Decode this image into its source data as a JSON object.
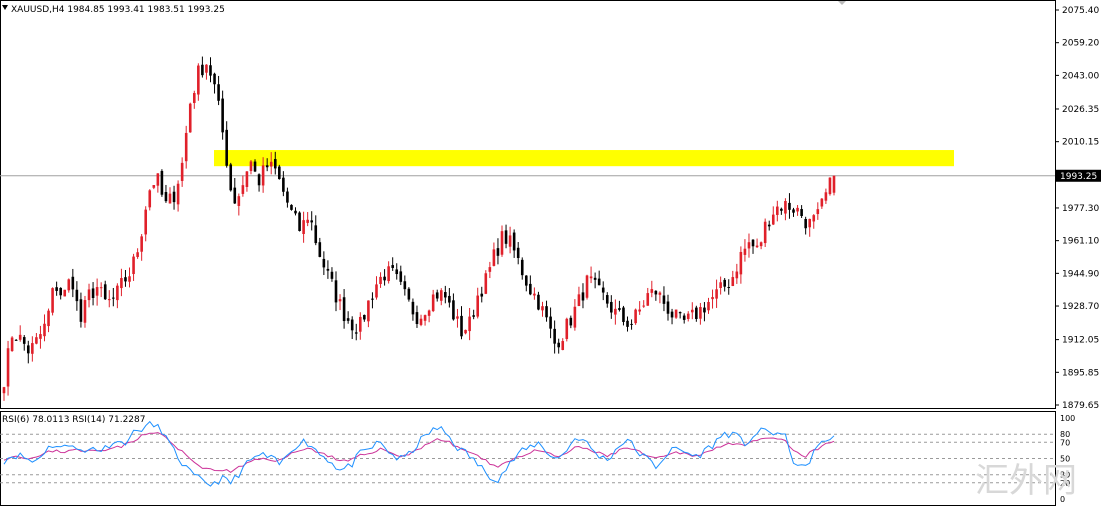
{
  "header": {
    "symbol_line": "XAUUSD,H4  1984.85 1993.41 1983.51 1993.25"
  },
  "price_axis": {
    "ticks": [
      "2075.40",
      "2059.20",
      "2043.00",
      "2026.35",
      "2010.15",
      "1993.25",
      "1977.30",
      "1961.10",
      "1944.90",
      "1928.70",
      "1912.05",
      "1895.85",
      "1879.65"
    ],
    "current_price_label": "1993.25"
  },
  "rsi_panel": {
    "header_text": "RSI(6) 78.0113  RSI(14) 71.2287",
    "ticks": [
      "100",
      "80",
      "70",
      "50",
      "30",
      "20",
      "0"
    ],
    "levels": [
      80,
      70,
      50,
      30,
      20
    ]
  },
  "watermark": "汇外网",
  "colors": {
    "bull_candle": "#e0202a",
    "bear_candle": "#000000",
    "zone": "#ffff00",
    "rsi6": "#1e90ff",
    "rsi14": "#cc3399",
    "grid_dash": "#9a9a9a",
    "price_line": "#a0a0a0"
  },
  "chart_data": [
    {
      "type": "candlestick",
      "title": "XAUUSD,H4",
      "ohlc_last": {
        "open": 1984.85,
        "high": 1993.41,
        "low": 1983.51,
        "close": 1993.25
      },
      "ylim": [
        1879.65,
        2075.4
      ],
      "resistance_zone": {
        "low": 1998,
        "high": 2006
      },
      "current_price": 1993.25,
      "path_closes": [
        1893,
        1916,
        1912,
        1906,
        1912,
        1920,
        1940,
        1933,
        1944,
        1920,
        1934,
        1938,
        1930,
        1932,
        1940,
        1946,
        1960,
        1985,
        1993,
        1978,
        1983,
        1998,
        2030,
        2045,
        2050,
        2035,
        2010,
        1980,
        1986,
        2002,
        1990,
        1998,
        1996,
        1985,
        1974,
        1966,
        1975,
        1958,
        1946,
        1936,
        1926,
        1920,
        1918,
        1930,
        1940,
        1945,
        1944,
        1936,
        1928,
        1923,
        1930,
        1935,
        1934,
        1925,
        1916,
        1920,
        1935,
        1942,
        1955,
        1964,
        1958,
        1948,
        1938,
        1932,
        1922,
        1910,
        1915,
        1923,
        1932,
        1942,
        1936,
        1932,
        1926,
        1922,
        1920,
        1926,
        1934,
        1936,
        1930,
        1924,
        1920,
        1922,
        1926,
        1930,
        1934,
        1938,
        1943,
        1954,
        1960,
        1956,
        1970,
        1977,
        1979,
        1978,
        1975,
        1969,
        1972,
        1983,
        1993
      ],
      "series_rsi": [
        {
          "name": "RSI(6)",
          "last": 78.0113,
          "values": [
            48,
            55,
            52,
            45,
            58,
            68,
            62,
            70,
            55,
            64,
            60,
            72,
            68,
            80,
            88,
            92,
            85,
            62,
            45,
            30,
            22,
            18,
            25,
            20,
            35,
            48,
            55,
            50,
            42,
            60,
            72,
            68,
            55,
            48,
            35,
            40,
            55,
            62,
            70,
            58,
            48,
            55,
            70,
            82,
            88,
            78,
            62,
            55,
            42,
            30,
            25,
            40,
            55,
            62,
            70,
            58,
            48,
            62,
            78,
            68,
            55,
            48,
            62,
            75,
            60,
            50,
            40,
            55,
            62,
            58,
            52,
            60,
            70,
            82,
            78,
            68,
            80,
            84,
            82,
            78,
            45,
            35,
            60,
            70,
            78
          ]
        },
        {
          "name": "RSI(14)",
          "last": 71.2287,
          "values": [
            50,
            53,
            52,
            50,
            55,
            60,
            58,
            62,
            58,
            60,
            60,
            65,
            65,
            72,
            78,
            82,
            80,
            68,
            58,
            48,
            40,
            35,
            36,
            34,
            40,
            46,
            50,
            49,
            47,
            55,
            62,
            62,
            57,
            53,
            46,
            47,
            53,
            57,
            62,
            58,
            53,
            55,
            62,
            70,
            74,
            70,
            63,
            59,
            52,
            45,
            41,
            46,
            52,
            56,
            60,
            56,
            52,
            57,
            64,
            62,
            57,
            53,
            58,
            64,
            59,
            54,
            49,
            53,
            57,
            56,
            54,
            57,
            62,
            69,
            69,
            66,
            71,
            74,
            74,
            72,
            58,
            52,
            60,
            66,
            71
          ]
        }
      ]
    }
  ]
}
